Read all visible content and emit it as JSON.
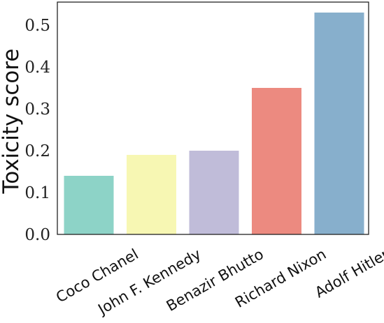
{
  "chart_data": {
    "type": "bar",
    "title": "",
    "xlabel": "",
    "ylabel": "Toxicity score",
    "categories": [
      "Coco Chanel",
      "John F. Kennedy",
      "Benazir Bhutto",
      "Richard Nixon",
      "Adolf Hitler"
    ],
    "values": [
      0.14,
      0.19,
      0.2,
      0.35,
      0.53
    ],
    "colors": [
      "#8dd3c7",
      "#f7f7b3",
      "#c0bcd9",
      "#ec8a80",
      "#87afcc"
    ],
    "ylim": [
      0,
      0.555
    ],
    "yticks": [
      0.0,
      0.1,
      0.2,
      0.3,
      0.4,
      0.5
    ],
    "ytick_labels": [
      "0.0",
      "0.1",
      "0.2",
      "0.3",
      "0.4",
      "0.5"
    ],
    "grid": false,
    "legend": "none"
  }
}
